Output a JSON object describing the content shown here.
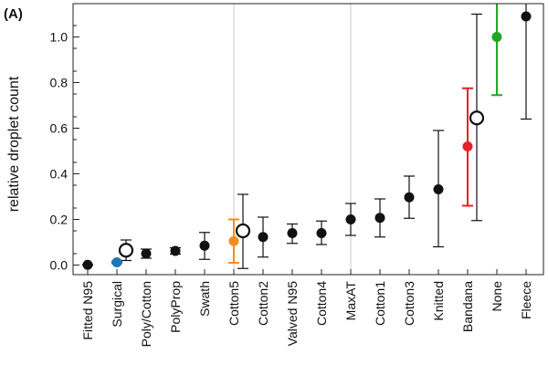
{
  "chart_data": {
    "type": "scatter",
    "panel_label": "(A)",
    "ylabel": "relative droplet count",
    "xlabel": "",
    "ylim": [
      -0.03,
      1.15
    ],
    "yticks": [
      0.0,
      0.2,
      0.4,
      0.6,
      0.8,
      1.0
    ],
    "ytick_labels": [
      "0.0",
      "0.2",
      "0.4",
      "0.6",
      "0.8",
      "1.0"
    ],
    "grid": "vertical lines at Cotton5 and MaxAT",
    "grid_categories": [
      "Cotton5",
      "MaxAT"
    ],
    "categories": [
      "Fitted N95",
      "Surgical",
      "Poly/Cotton",
      "PolyProp",
      "Swath",
      "Cotton5",
      "Cotton2",
      "Valved N95",
      "Cotton4",
      "MaxAT",
      "Cotton1",
      "Cotton3",
      "Knitted",
      "Bandana",
      "None",
      "Fleece"
    ],
    "points": [
      {
        "category": "Fitted N95",
        "y": 0.001,
        "lo": 0.0,
        "hi": 0.002,
        "color": "#111111"
      },
      {
        "category": "Surgical",
        "y": 0.012,
        "lo": 0.008,
        "hi": 0.016,
        "color": "#1f77b4"
      },
      {
        "category": "Poly/Cotton",
        "y": 0.05,
        "lo": 0.03,
        "hi": 0.07,
        "color": "#111111"
      },
      {
        "category": "PolyProp",
        "y": 0.062,
        "lo": 0.048,
        "hi": 0.076,
        "color": "#111111"
      },
      {
        "category": "Swath",
        "y": 0.085,
        "lo": 0.025,
        "hi": 0.143,
        "color": "#111111"
      },
      {
        "category": "Cotton5",
        "y": 0.105,
        "lo": 0.01,
        "hi": 0.2,
        "color": "#f28e1c"
      },
      {
        "category": "Cotton2",
        "y": 0.123,
        "lo": 0.035,
        "hi": 0.21,
        "color": "#111111"
      },
      {
        "category": "Valved N95",
        "y": 0.14,
        "lo": 0.095,
        "hi": 0.18,
        "color": "#111111"
      },
      {
        "category": "Cotton4",
        "y": 0.14,
        "lo": 0.09,
        "hi": 0.193,
        "color": "#111111"
      },
      {
        "category": "MaxAT",
        "y": 0.2,
        "lo": 0.13,
        "hi": 0.27,
        "color": "#111111"
      },
      {
        "category": "Cotton1",
        "y": 0.207,
        "lo": 0.123,
        "hi": 0.29,
        "color": "#111111"
      },
      {
        "category": "Cotton3",
        "y": 0.297,
        "lo": 0.205,
        "hi": 0.39,
        "color": "#111111"
      },
      {
        "category": "Knitted",
        "y": 0.332,
        "lo": 0.08,
        "hi": 0.59,
        "color": "#111111"
      },
      {
        "category": "Bandana",
        "y": 0.52,
        "lo": 0.26,
        "hi": 0.775,
        "color": "#e8202a"
      },
      {
        "category": "None",
        "y": 1.0,
        "lo": 0.745,
        "hi": 1.25,
        "color": "#1fa824"
      },
      {
        "category": "Fleece",
        "y": 1.09,
        "lo": 0.64,
        "hi": 1.4,
        "color": "#111111"
      }
    ],
    "open_circles": [
      {
        "category": "Surgical",
        "y": 0.065,
        "lo": 0.02,
        "hi": 0.11
      },
      {
        "category": "Cotton5",
        "y": 0.15,
        "lo": -0.015,
        "hi": 0.31
      },
      {
        "category": "Bandana",
        "y": 0.645,
        "lo": 0.195,
        "hi": 1.1
      }
    ]
  }
}
